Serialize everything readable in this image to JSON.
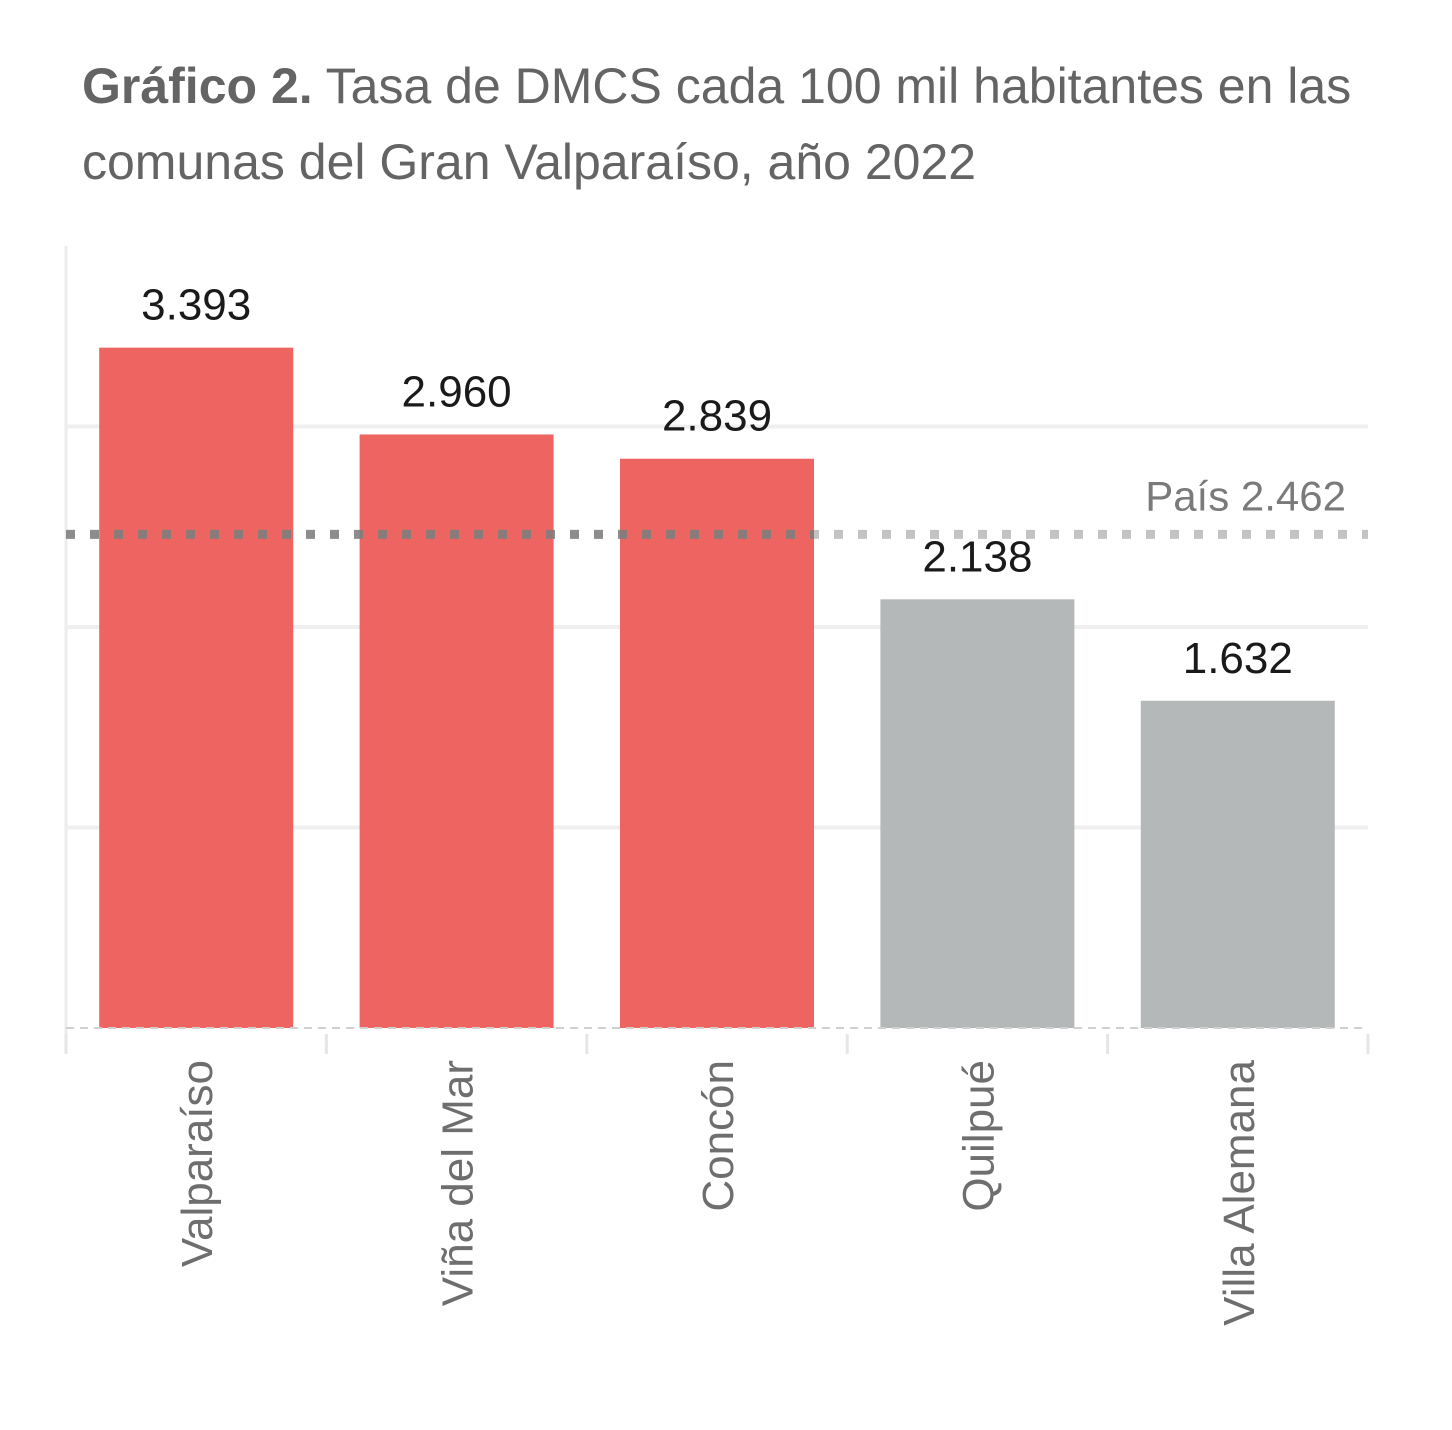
{
  "title": {
    "bold": "Gráfico 2.",
    "text": "Tasa de DMCS cada 100 mil habitantes en las comunas del Gran Valparaíso, año 2022"
  },
  "chart_data": {
    "type": "bar",
    "categories": [
      "Valparaíso",
      "Viña del Mar",
      "Concón",
      "Quilpué",
      "Villa Alemana"
    ],
    "values": [
      3393,
      2960,
      2839,
      2138,
      1632
    ],
    "value_labels": [
      "3.393",
      "2.960",
      "2.839",
      "2.138",
      "1.632"
    ],
    "bar_colors": [
      "#ee6460",
      "#ee6460",
      "#ee6460",
      "#b5b8b9",
      "#b5b8b9"
    ],
    "ylim": [
      0,
      3900
    ],
    "gridlines": [
      1000,
      2000,
      3000
    ],
    "reference_line": {
      "value": 2462,
      "label": "País 2.462",
      "color": "#b9b9b9"
    },
    "xlabel": "",
    "ylabel": "",
    "grid": true
  }
}
